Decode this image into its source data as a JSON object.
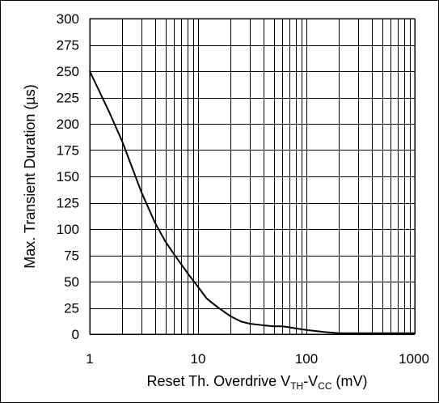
{
  "chart_data": {
    "type": "line",
    "title": "",
    "xlabel": {
      "prefix": "Reset Th. Overdrive V",
      "sub1": "TH",
      "mid": "-V",
      "sub2": "CC",
      "suffix": " (mV)"
    },
    "ylabel": "Max. Transient Duration (µs)",
    "x_scale": "log",
    "xlim": [
      1,
      1000
    ],
    "ylim": [
      0,
      300
    ],
    "x_ticks": [
      1,
      10,
      100,
      1000
    ],
    "x_tick_labels": [
      "1",
      "10",
      "100",
      "1000"
    ],
    "y_ticks": [
      0,
      25,
      50,
      75,
      100,
      125,
      150,
      175,
      200,
      225,
      250,
      275,
      300
    ],
    "y_tick_labels": [
      "0",
      "25",
      "50",
      "75",
      "100",
      "125",
      "150",
      "175",
      "200",
      "225",
      "250",
      "275",
      "300"
    ],
    "grid": true,
    "legend": "none",
    "series": [
      {
        "x": [
          1,
          1.5,
          2,
          3,
          4,
          5,
          6,
          8,
          10,
          12,
          15,
          20,
          25,
          30,
          40,
          50,
          60,
          70,
          80,
          100,
          150,
          200,
          300,
          500,
          1000
        ],
        "y": [
          250,
          212,
          183,
          135,
          106,
          88,
          76,
          58,
          45,
          34,
          26,
          17,
          12,
          10,
          8.5,
          7.5,
          7.5,
          6.5,
          5.5,
          4,
          2,
          1,
          1,
          1,
          1
        ]
      }
    ],
    "colors": {
      "line": "#000000",
      "grid": "#000000",
      "frame": "#000000"
    }
  }
}
